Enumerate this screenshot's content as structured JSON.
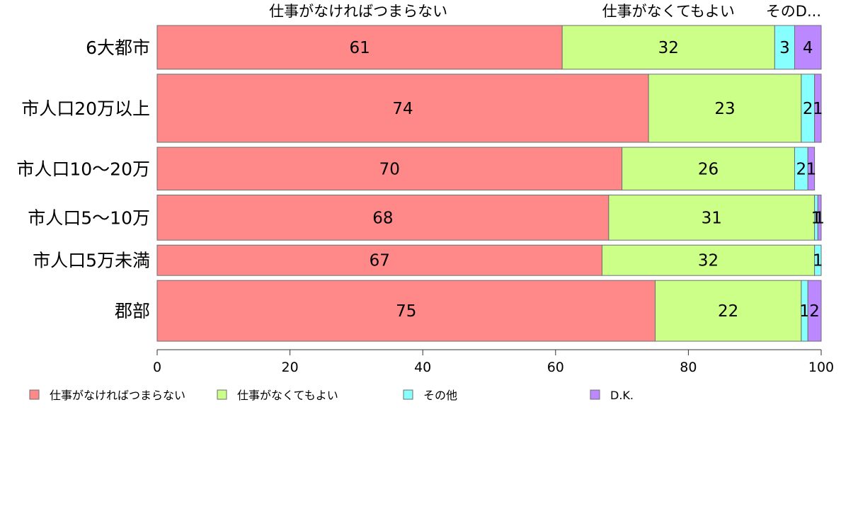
{
  "chart_data": {
    "type": "bar",
    "orientation": "horizontal",
    "stacked": true,
    "categories": [
      "6大都市",
      "市人口20万以上",
      "市人口10〜20万",
      "市人口5〜10万",
      "市人口5万未満",
      "郡部"
    ],
    "series": [
      {
        "name": "仕事がなければつまらない",
        "color": "#ff8888",
        "values": [
          61,
          74,
          70,
          68,
          67,
          75
        ],
        "labels": [
          "61",
          "74",
          "70",
          "68",
          "67",
          "75"
        ]
      },
      {
        "name": "仕事がなくてもよい",
        "color": "#ccff88",
        "values": [
          32,
          23,
          26,
          31,
          32,
          22
        ],
        "labels": [
          "32",
          "23",
          "26",
          "31",
          "32",
          "22"
        ]
      },
      {
        "name": "その他",
        "color": "#88ffff",
        "values": [
          3,
          2,
          2,
          0.5,
          1,
          1
        ],
        "labels": [
          "3",
          "2",
          "2",
          "1",
          "1",
          "1"
        ]
      },
      {
        "name": "D.K.",
        "color": "#bb88ff",
        "values": [
          4,
          1,
          1,
          0.5,
          0,
          2
        ],
        "labels": [
          "4",
          "1",
          "1",
          "1",
          "",
          "2"
        ]
      }
    ],
    "bar_weights": [
      0.95,
      1.48,
      0.93,
      0.98,
      0.66,
      1.32
    ],
    "top_labels": [
      "仕事がなければつまらない",
      "仕事がなくてもよい",
      "そのD..."
    ],
    "xlim": [
      0,
      100
    ],
    "xticks": [
      "0",
      "20",
      "40",
      "60",
      "80",
      "100"
    ],
    "legend_position": "bottom",
    "grid": false
  }
}
